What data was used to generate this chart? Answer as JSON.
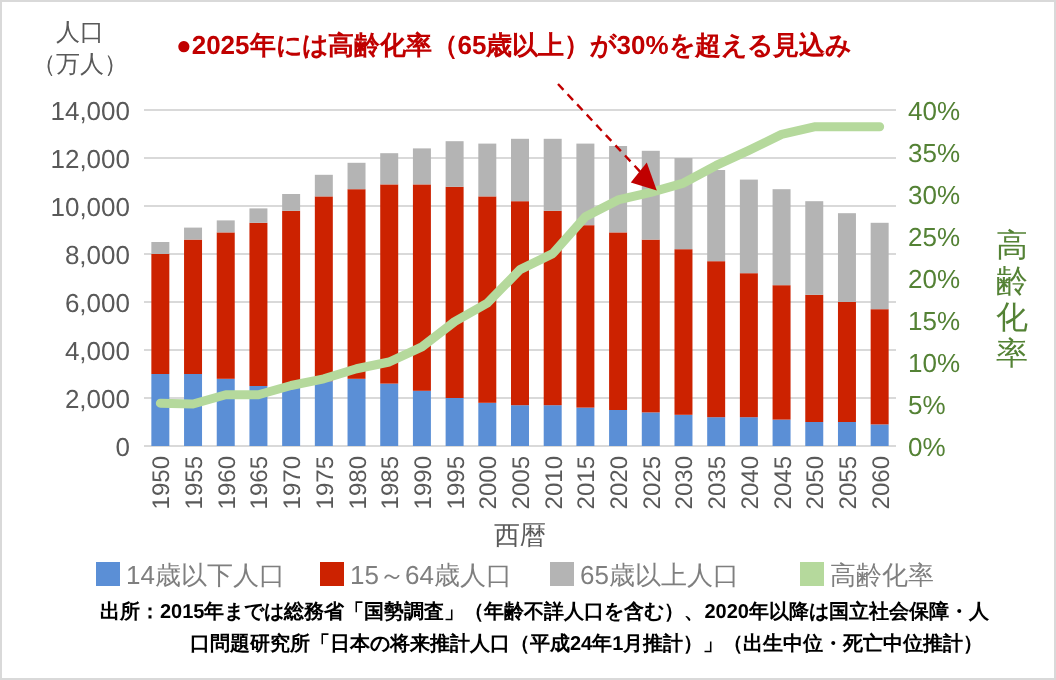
{
  "chart_data": {
    "type": "bar",
    "stacked": true,
    "xlabel": "西暦",
    "ylabel": "人口（万人）",
    "y2label": "高齢化率",
    "categories": [
      "1950",
      "1955",
      "1960",
      "1965",
      "1970",
      "1975",
      "1980",
      "1985",
      "1990",
      "1995",
      "2000",
      "2005",
      "2010",
      "2015",
      "2020",
      "2025",
      "2030",
      "2035",
      "2040",
      "2045",
      "2050",
      "2055",
      "2060"
    ],
    "series": [
      {
        "name": "14歳以下人口",
        "color": "#5b8fd6",
        "values": [
          3000,
          3000,
          2800,
          2500,
          2500,
          2700,
          2800,
          2600,
          2300,
          2000,
          1800,
          1700,
          1700,
          1600,
          1500,
          1400,
          1300,
          1200,
          1200,
          1100,
          1000,
          1000,
          900
        ]
      },
      {
        "name": "15～64歳人口",
        "color": "#cc2200",
        "values": [
          5000,
          5600,
          6100,
          6800,
          7300,
          7700,
          7900,
          8300,
          8600,
          8800,
          8600,
          8500,
          8100,
          7600,
          7400,
          7200,
          6900,
          6500,
          6000,
          5600,
          5300,
          5000,
          4800
        ]
      },
      {
        "name": "65歳以上人口",
        "color": "#b4b4b4",
        "values": [
          500,
          500,
          500,
          600,
          700,
          900,
          1100,
          1300,
          1500,
          1900,
          2200,
          2600,
          3000,
          3400,
          3600,
          3700,
          3800,
          3800,
          3900,
          4000,
          3900,
          3700,
          3600
        ]
      },
      {
        "name": "高齢化率",
        "type": "line",
        "axis": "y2",
        "color": "#b5d99c",
        "values": [
          5.1,
          5.0,
          6.1,
          6.1,
          7.2,
          8.0,
          9.2,
          10.0,
          11.8,
          14.8,
          17.0,
          21.0,
          22.9,
          27.3,
          29.3,
          30.2,
          31.3,
          33.4,
          35.2,
          37.1,
          38.0,
          38.0,
          38.0
        ]
      }
    ],
    "ylim": [
      0,
      14000
    ],
    "yticks": [
      0,
      {
        "value": 2000,
        "label": "2,000"
      },
      {
        "value": 4000,
        "label": "4,000"
      },
      {
        "value": 6000,
        "label": "6,000"
      },
      {
        "value": 8000,
        "label": "8,000"
      },
      {
        "value": 10000,
        "label": "10,000"
      },
      {
        "value": 12000,
        "label": "12,000"
      },
      {
        "value": 14000,
        "label": "14,000"
      }
    ],
    "y2lim": [
      0,
      40
    ],
    "y2ticks": [
      {
        "value": 0,
        "label": "0%"
      },
      {
        "value": 5,
        "label": "5%"
      },
      {
        "value": 10,
        "label": "10%"
      },
      {
        "value": 15,
        "label": "15%"
      },
      {
        "value": 20,
        "label": "20%"
      },
      {
        "value": 25,
        "label": "25%"
      },
      {
        "value": 30,
        "label": "30%"
      },
      {
        "value": 35,
        "label": "35%"
      },
      {
        "value": 40,
        "label": "40%"
      }
    ],
    "grid": "y",
    "legend": "bottom",
    "marker": "none",
    "annotations": [
      {
        "text": "●2025年には高齢化率（65歳以上）が30%を超える見込み",
        "x": "2025",
        "y": 10900
      },
      "出所：2015年までは総務省「国勢調査」（年齢不詳人口を含む）、2020年以降は国立社会保障・人口問題研究所「日本の将来推計人口（平成24年1月推計）」（出生中位・死亡中位推計）"
    ]
  }
}
